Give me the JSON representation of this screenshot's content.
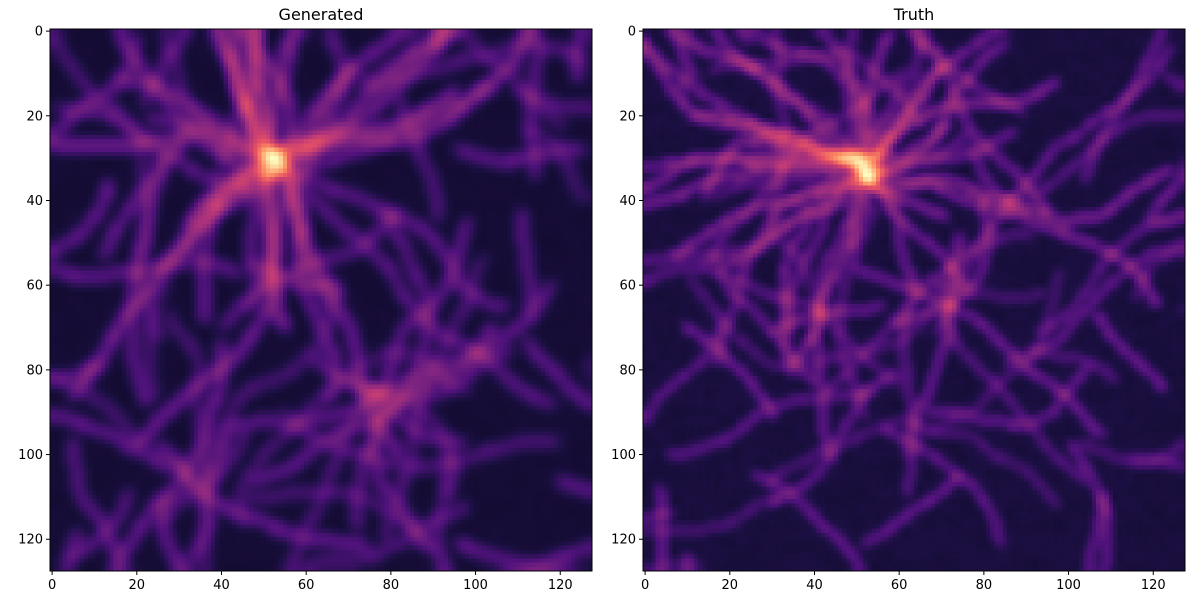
{
  "chart_data": [
    {
      "type": "heatmap",
      "title": "Generated",
      "xlabel": "",
      "ylabel": "",
      "xlim": [
        0,
        127
      ],
      "ylim": [
        127,
        0
      ],
      "x_ticks": [
        0,
        20,
        40,
        60,
        80,
        100,
        120
      ],
      "y_ticks": [
        0,
        20,
        40,
        60,
        80,
        100,
        120
      ],
      "grid": false,
      "colormap": "magma",
      "image_size": [
        128,
        128
      ],
      "seed": 7
    },
    {
      "type": "heatmap",
      "title": "Truth",
      "xlabel": "",
      "ylabel": "",
      "xlim": [
        0,
        127
      ],
      "ylim": [
        127,
        0
      ],
      "x_ticks": [
        0,
        20,
        40,
        60,
        80,
        100,
        120
      ],
      "y_ticks": [
        0,
        20,
        40,
        60,
        80,
        100,
        120
      ],
      "grid": false,
      "colormap": "magma",
      "image_size": [
        128,
        128
      ],
      "seed": 11
    }
  ],
  "colors": {
    "background": "#ffffff",
    "axis": "#000000",
    "magma_stops": [
      "#000004",
      "#1c1044",
      "#4f127b",
      "#812581",
      "#b5367a",
      "#e55064",
      "#fb8761",
      "#fec287",
      "#fcfdbf"
    ]
  }
}
